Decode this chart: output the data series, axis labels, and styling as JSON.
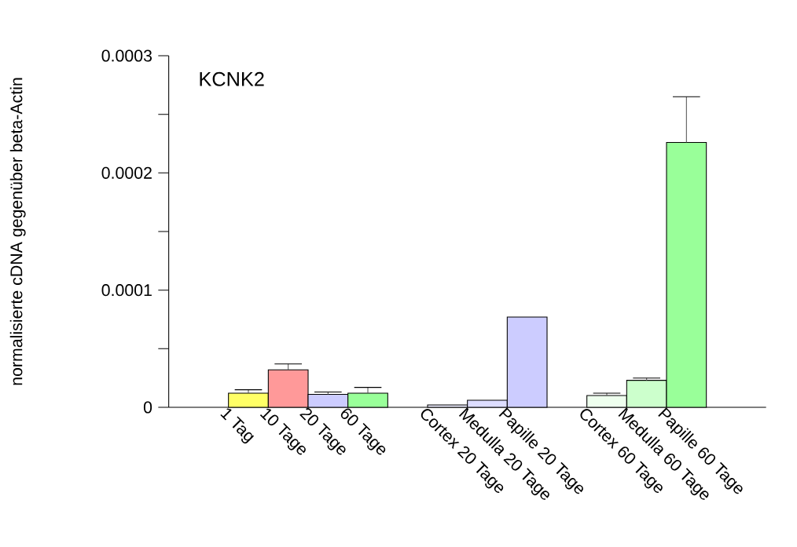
{
  "chart_data": {
    "type": "bar",
    "ylabel": "normalisierte cDNA gegenüber beta-Actin",
    "annotations": [
      "KCNK2"
    ],
    "categories": [
      "1 Tag",
      "10 Tage",
      "20 Tage",
      "60 Tage",
      null,
      "Cortex 20 Tage",
      "Medulla 20 Tage",
      "Papille 20 Tage",
      null,
      "Cortex 60 Tage",
      "Medulla 60 Tage",
      "Papille 60 Tage"
    ],
    "values": [
      1.2e-05,
      3.2e-05,
      1.1e-05,
      1.2e-05,
      null,
      2e-06,
      6e-06,
      7.7e-05,
      null,
      1e-05,
      2.3e-05,
      0.000226
    ],
    "errors": [
      3e-06,
      5e-06,
      2e-06,
      5e-06,
      null,
      null,
      null,
      null,
      null,
      2e-06,
      2e-06,
      3.9e-05
    ],
    "colors": [
      "#ffff66",
      "#ff9999",
      "#ccccff",
      "#99ff99",
      null,
      "#eeeeff",
      "#ddddff",
      "#ccccff",
      null,
      "#eeffee",
      "#ccffcc",
      "#99ff99"
    ],
    "ylim": [
      0,
      0.0003
    ],
    "yticks": [
      {
        "value": 0,
        "label": "0"
      },
      {
        "value": 0.0001,
        "label": "0.0001"
      },
      {
        "value": 0.0002,
        "label": "0.0002"
      },
      {
        "value": 0.0003,
        "label": "0.0003"
      }
    ],
    "grid": false
  }
}
